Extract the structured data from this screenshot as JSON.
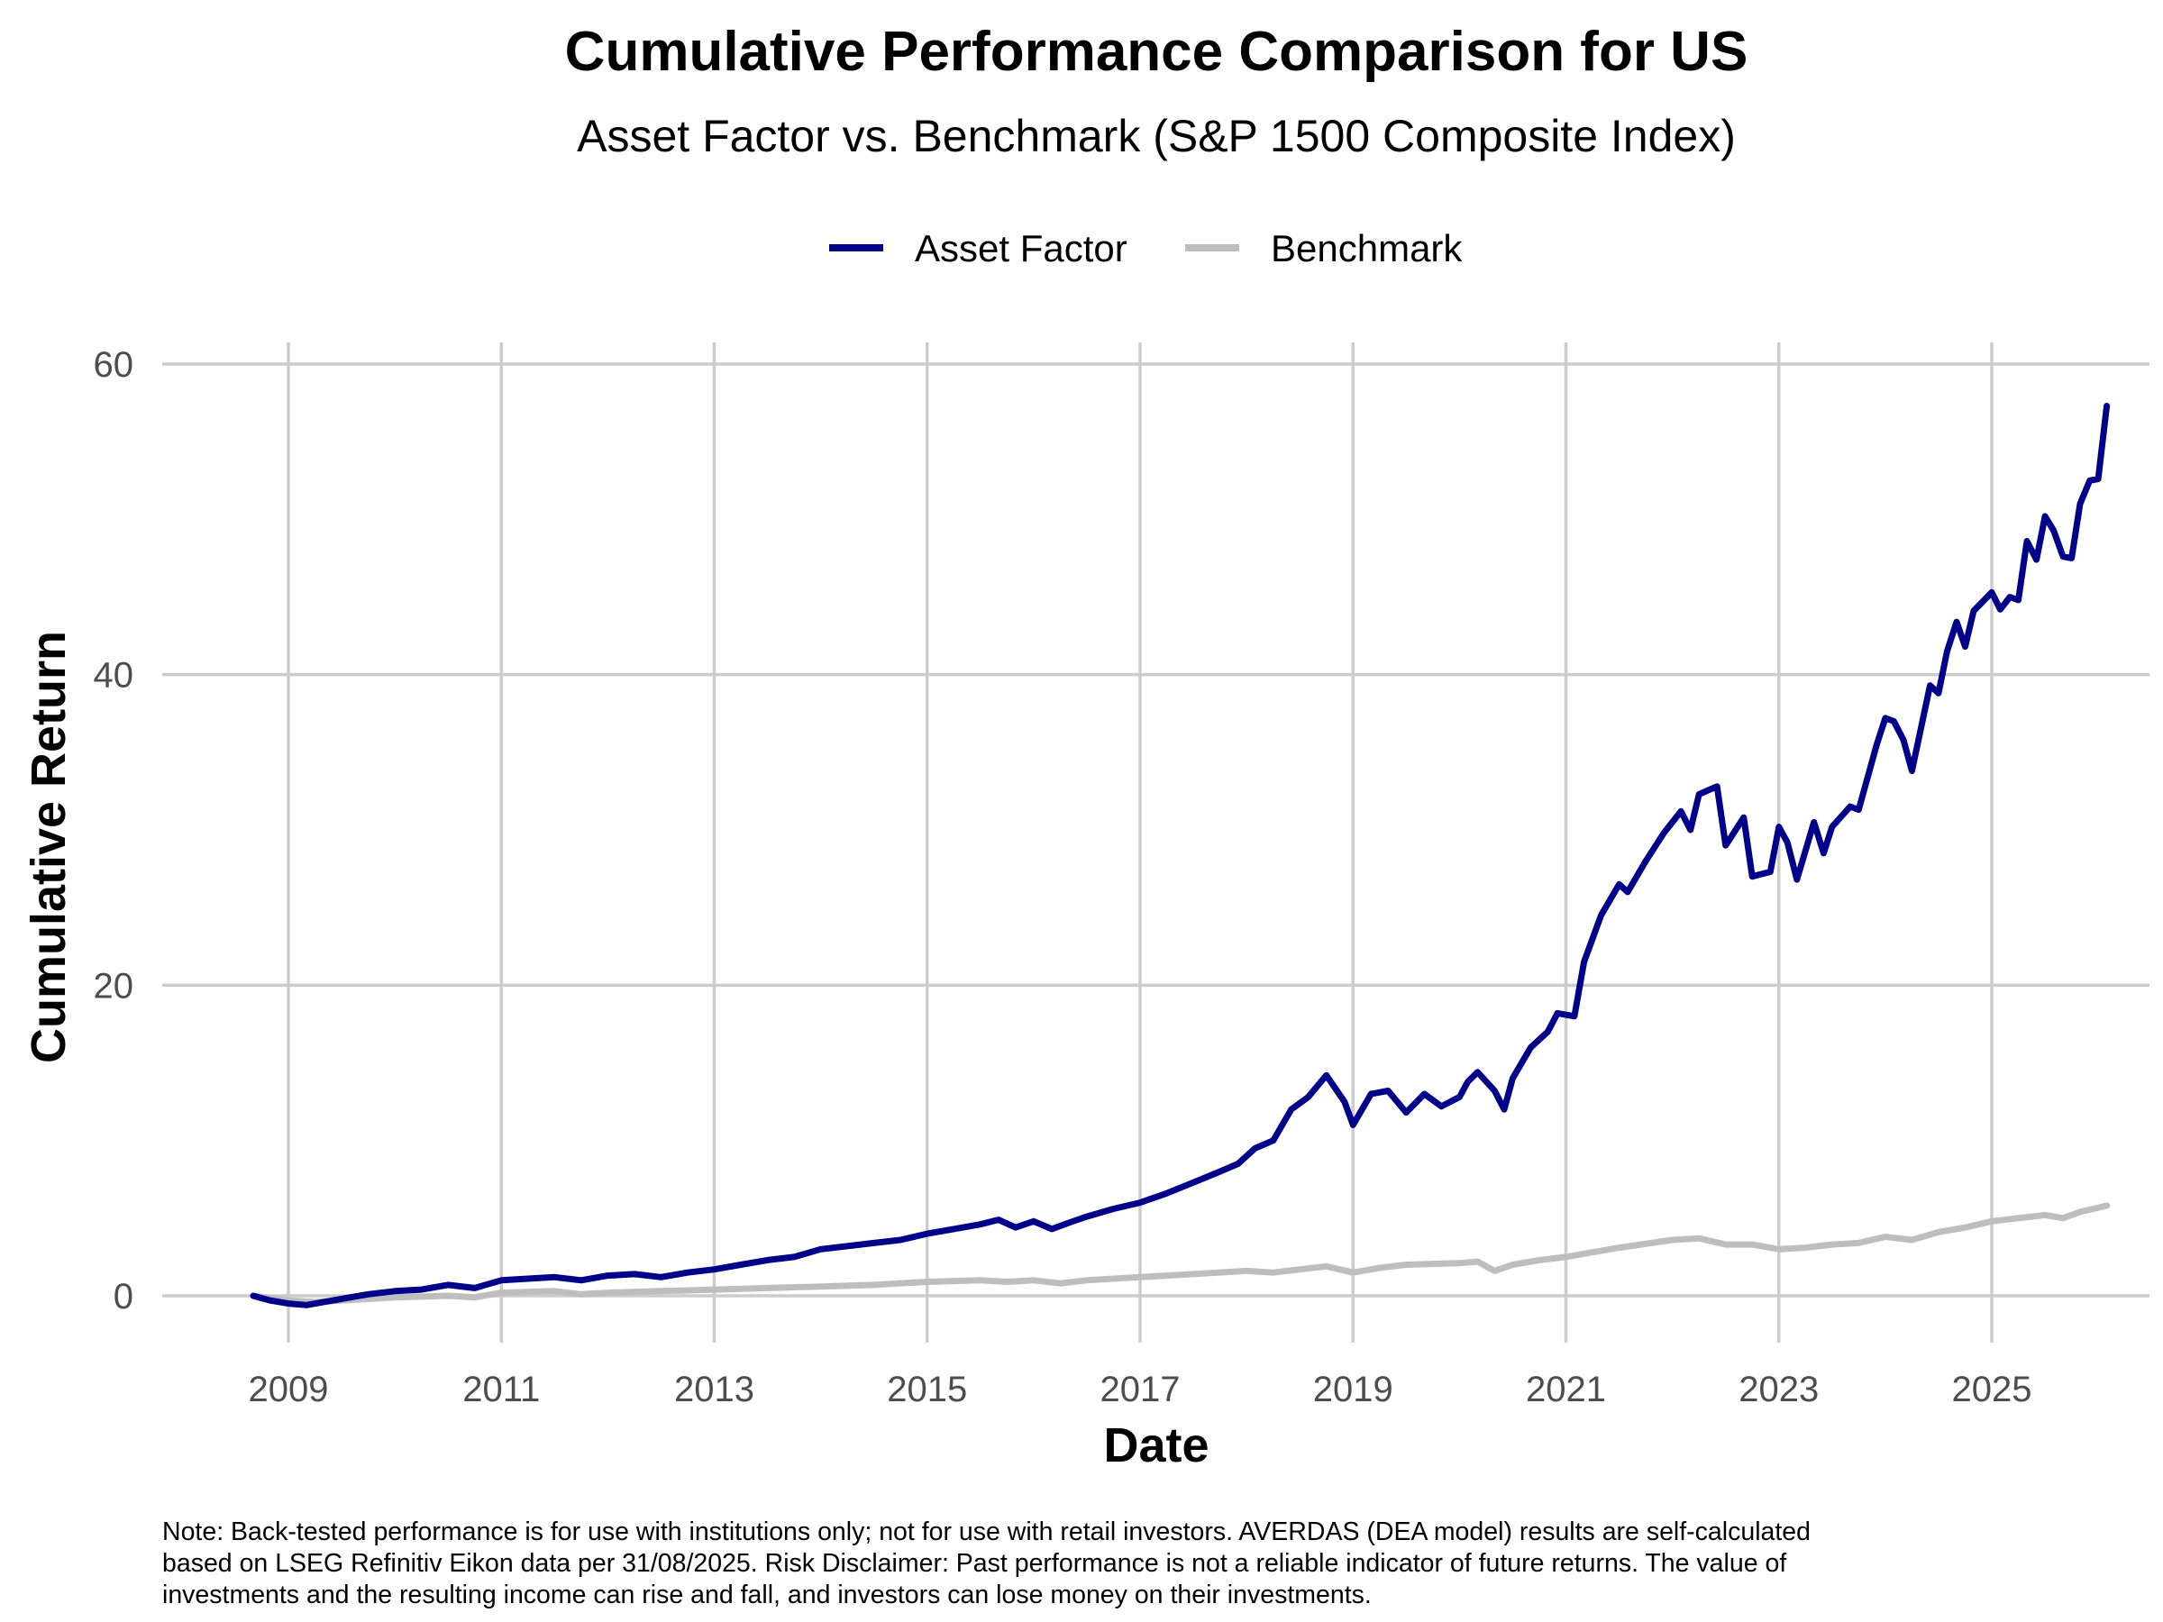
{
  "chart_data": {
    "type": "line",
    "title": "Cumulative Performance Comparison for US",
    "subtitle": "Asset Factor vs. Benchmark (S&P 1500 Composite Index)",
    "xlabel": "Date",
    "ylabel": "Cumulative Return",
    "ylim": [
      -3,
      63
    ],
    "xlim": [
      2007.7,
      2026.5
    ],
    "x_ticks": [
      2009,
      2011,
      2013,
      2015,
      2017,
      2019,
      2021,
      2023,
      2025
    ],
    "x_tick_labels": [
      "2009",
      "2011",
      "2013",
      "2015",
      "2017",
      "2019",
      "2021",
      "2023",
      "2025"
    ],
    "y_ticks": [
      0,
      20,
      40,
      60
    ],
    "y_tick_labels": [
      "0",
      "20",
      "40",
      "60"
    ],
    "grid": true,
    "legend_position": "top",
    "series": [
      {
        "name": "Asset Factor",
        "color": "#00008B",
        "points": [
          [
            2008.67,
            0.0
          ],
          [
            2008.83,
            -0.3
          ],
          [
            2009.0,
            -0.5
          ],
          [
            2009.17,
            -0.6
          ],
          [
            2009.33,
            -0.4
          ],
          [
            2009.5,
            -0.2
          ],
          [
            2009.75,
            0.1
          ],
          [
            2010.0,
            0.3
          ],
          [
            2010.25,
            0.4
          ],
          [
            2010.5,
            0.7
          ],
          [
            2010.75,
            0.5
          ],
          [
            2011.0,
            1.0
          ],
          [
            2011.25,
            1.1
          ],
          [
            2011.5,
            1.2
          ],
          [
            2011.75,
            1.0
          ],
          [
            2012.0,
            1.3
          ],
          [
            2012.25,
            1.4
          ],
          [
            2012.5,
            1.2
          ],
          [
            2012.75,
            1.5
          ],
          [
            2013.0,
            1.7
          ],
          [
            2013.25,
            2.0
          ],
          [
            2013.5,
            2.3
          ],
          [
            2013.75,
            2.5
          ],
          [
            2014.0,
            3.0
          ],
          [
            2014.25,
            3.2
          ],
          [
            2014.5,
            3.4
          ],
          [
            2014.75,
            3.6
          ],
          [
            2015.0,
            4.0
          ],
          [
            2015.25,
            4.3
          ],
          [
            2015.5,
            4.6
          ],
          [
            2015.67,
            4.9
          ],
          [
            2015.83,
            4.4
          ],
          [
            2016.0,
            4.8
          ],
          [
            2016.17,
            4.3
          ],
          [
            2016.33,
            4.7
          ],
          [
            2016.5,
            5.1
          ],
          [
            2016.75,
            5.6
          ],
          [
            2017.0,
            6.0
          ],
          [
            2017.25,
            6.6
          ],
          [
            2017.5,
            7.3
          ],
          [
            2017.75,
            8.0
          ],
          [
            2017.92,
            8.5
          ],
          [
            2018.08,
            9.5
          ],
          [
            2018.25,
            10.0
          ],
          [
            2018.42,
            12.0
          ],
          [
            2018.58,
            12.8
          ],
          [
            2018.75,
            14.2
          ],
          [
            2018.92,
            12.5
          ],
          [
            2019.0,
            11.0
          ],
          [
            2019.17,
            13.0
          ],
          [
            2019.33,
            13.2
          ],
          [
            2019.5,
            11.8
          ],
          [
            2019.67,
            13.0
          ],
          [
            2019.83,
            12.2
          ],
          [
            2020.0,
            12.8
          ],
          [
            2020.08,
            13.8
          ],
          [
            2020.17,
            14.4
          ],
          [
            2020.33,
            13.2
          ],
          [
            2020.42,
            12.0
          ],
          [
            2020.5,
            14.0
          ],
          [
            2020.67,
            16.0
          ],
          [
            2020.83,
            17.0
          ],
          [
            2020.92,
            18.2
          ],
          [
            2021.08,
            18.0
          ],
          [
            2021.17,
            21.5
          ],
          [
            2021.33,
            24.5
          ],
          [
            2021.5,
            26.5
          ],
          [
            2021.58,
            26.0
          ],
          [
            2021.75,
            28.0
          ],
          [
            2021.92,
            29.8
          ],
          [
            2022.08,
            31.2
          ],
          [
            2022.17,
            30.0
          ],
          [
            2022.25,
            32.3
          ],
          [
            2022.42,
            32.8
          ],
          [
            2022.5,
            29.0
          ],
          [
            2022.67,
            30.8
          ],
          [
            2022.75,
            27.0
          ],
          [
            2022.92,
            27.3
          ],
          [
            2023.0,
            30.2
          ],
          [
            2023.08,
            29.2
          ],
          [
            2023.17,
            26.8
          ],
          [
            2023.33,
            30.5
          ],
          [
            2023.42,
            28.5
          ],
          [
            2023.5,
            30.2
          ],
          [
            2023.67,
            31.5
          ],
          [
            2023.75,
            31.3
          ],
          [
            2023.92,
            35.5
          ],
          [
            2024.0,
            37.2
          ],
          [
            2024.08,
            37.0
          ],
          [
            2024.17,
            35.8
          ],
          [
            2024.25,
            33.8
          ],
          [
            2024.42,
            39.3
          ],
          [
            2024.5,
            38.8
          ],
          [
            2024.58,
            41.5
          ],
          [
            2024.67,
            43.4
          ],
          [
            2024.75,
            41.8
          ],
          [
            2024.83,
            44.1
          ],
          [
            2025.0,
            45.3
          ],
          [
            2025.08,
            44.2
          ],
          [
            2025.17,
            45.0
          ],
          [
            2025.25,
            44.8
          ],
          [
            2025.33,
            48.6
          ],
          [
            2025.42,
            47.4
          ],
          [
            2025.5,
            50.2
          ],
          [
            2025.58,
            49.3
          ],
          [
            2025.67,
            47.6
          ],
          [
            2025.75,
            47.5
          ],
          [
            2025.83,
            51.0
          ],
          [
            2025.92,
            52.5
          ],
          [
            2026.0,
            52.6
          ],
          [
            2026.08,
            57.3
          ]
        ]
      },
      {
        "name": "Benchmark",
        "color": "#BEBEBE",
        "points": [
          [
            2008.67,
            0.0
          ],
          [
            2009.0,
            -0.3
          ],
          [
            2009.25,
            -0.4
          ],
          [
            2009.5,
            -0.3
          ],
          [
            2010.0,
            -0.1
          ],
          [
            2010.5,
            0.0
          ],
          [
            2010.75,
            -0.1
          ],
          [
            2011.0,
            0.2
          ],
          [
            2011.5,
            0.3
          ],
          [
            2011.75,
            0.1
          ],
          [
            2012.0,
            0.2
          ],
          [
            2012.5,
            0.3
          ],
          [
            2013.0,
            0.4
          ],
          [
            2013.5,
            0.5
          ],
          [
            2014.0,
            0.6
          ],
          [
            2014.5,
            0.7
          ],
          [
            2015.0,
            0.9
          ],
          [
            2015.5,
            1.0
          ],
          [
            2015.75,
            0.9
          ],
          [
            2016.0,
            1.0
          ],
          [
            2016.25,
            0.8
          ],
          [
            2016.5,
            1.0
          ],
          [
            2017.0,
            1.2
          ],
          [
            2017.5,
            1.4
          ],
          [
            2018.0,
            1.6
          ],
          [
            2018.25,
            1.5
          ],
          [
            2018.5,
            1.7
          ],
          [
            2018.75,
            1.9
          ],
          [
            2019.0,
            1.5
          ],
          [
            2019.25,
            1.8
          ],
          [
            2019.5,
            2.0
          ],
          [
            2020.0,
            2.1
          ],
          [
            2020.17,
            2.2
          ],
          [
            2020.33,
            1.6
          ],
          [
            2020.5,
            2.0
          ],
          [
            2020.75,
            2.3
          ],
          [
            2021.0,
            2.5
          ],
          [
            2021.25,
            2.8
          ],
          [
            2021.5,
            3.1
          ],
          [
            2022.0,
            3.6
          ],
          [
            2022.25,
            3.7
          ],
          [
            2022.5,
            3.3
          ],
          [
            2022.75,
            3.3
          ],
          [
            2023.0,
            3.0
          ],
          [
            2023.25,
            3.1
          ],
          [
            2023.5,
            3.3
          ],
          [
            2023.75,
            3.4
          ],
          [
            2024.0,
            3.8
          ],
          [
            2024.25,
            3.6
          ],
          [
            2024.5,
            4.1
          ],
          [
            2024.75,
            4.4
          ],
          [
            2025.0,
            4.8
          ],
          [
            2025.25,
            5.0
          ],
          [
            2025.5,
            5.2
          ],
          [
            2025.67,
            5.0
          ],
          [
            2025.83,
            5.4
          ],
          [
            2026.08,
            5.8
          ]
        ]
      }
    ]
  },
  "note": [
    "Note: Back-tested performance is for use with institutions only; not for use with retail investors. AVERDAS (DEA model) results are self-calculated",
    "based on LSEG Refinitiv Eikon data per 31/08/2025. Risk Disclaimer: Past performance is not a reliable indicator of future returns. The value of",
    "investments and the resulting income can rise and fall, and investors can lose money on their investments."
  ]
}
